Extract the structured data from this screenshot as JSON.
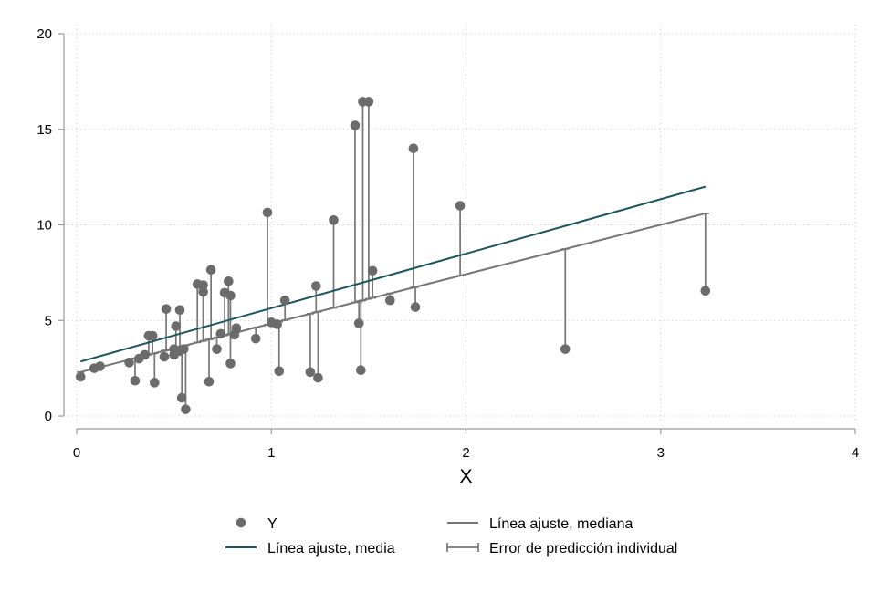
{
  "chart_data": {
    "type": "scatter",
    "title": "",
    "xlabel": "X",
    "ylabel": "",
    "xlim": [
      0,
      4
    ],
    "ylim": [
      0,
      20
    ],
    "x_ticks": [
      "0",
      "1",
      "2",
      "3",
      "4"
    ],
    "y_ticks": [
      "0",
      "5",
      "10",
      "15",
      "20"
    ],
    "grid": "on",
    "legend_placement": "bottom",
    "colors": {
      "points": "#6b6b6b",
      "mean_line": "#1b5560",
      "median_line": "#767676",
      "error_bars": "#767676",
      "grid": "#d4d4d4",
      "axis": "#9a9a9a"
    },
    "legend": [
      {
        "key": "points",
        "label": "Y"
      },
      {
        "key": "median_line",
        "label": "Línea ajuste, mediana"
      },
      {
        "key": "mean_line",
        "label": "Línea ajuste, media"
      },
      {
        "key": "error_bars",
        "label": "Error de predicción individual"
      }
    ],
    "mean_line": {
      "x": [
        0.02,
        3.23
      ],
      "y": [
        2.85,
        12.0
      ]
    },
    "median_line": {
      "x": [
        0.02,
        3.23
      ],
      "y": [
        2.3,
        10.6
      ]
    },
    "points": {
      "x": [
        0.02,
        0.09,
        0.12,
        0.27,
        0.3,
        0.32,
        0.35,
        0.37,
        0.39,
        0.4,
        0.45,
        0.46,
        0.5,
        0.5,
        0.51,
        0.53,
        0.53,
        0.54,
        0.55,
        0.56,
        0.62,
        0.65,
        0.65,
        0.68,
        0.69,
        0.72,
        0.74,
        0.76,
        0.78,
        0.79,
        0.79,
        0.81,
        0.82,
        0.92,
        0.98,
        1.0,
        1.03,
        1.04,
        1.07,
        1.2,
        1.23,
        1.24,
        1.32,
        1.43,
        1.45,
        1.46,
        1.47,
        1.5,
        1.52,
        1.61,
        1.73,
        1.74,
        1.97,
        2.51,
        3.23
      ],
      "y": [
        2.05,
        2.5,
        2.6,
        2.8,
        1.85,
        3.0,
        3.2,
        4.2,
        4.2,
        1.75,
        3.1,
        5.6,
        3.2,
        3.5,
        4.7,
        3.4,
        5.55,
        0.95,
        3.5,
        0.35,
        6.9,
        6.85,
        6.5,
        1.8,
        7.65,
        3.5,
        4.3,
        6.45,
        7.05,
        6.3,
        2.75,
        4.25,
        4.6,
        4.05,
        10.65,
        4.9,
        4.8,
        2.35,
        6.05,
        2.3,
        6.8,
        2.0,
        10.25,
        15.2,
        4.85,
        2.4,
        16.45,
        16.45,
        7.6,
        6.05,
        14.0,
        5.7,
        11.0,
        3.5,
        6.55
      ]
    }
  }
}
